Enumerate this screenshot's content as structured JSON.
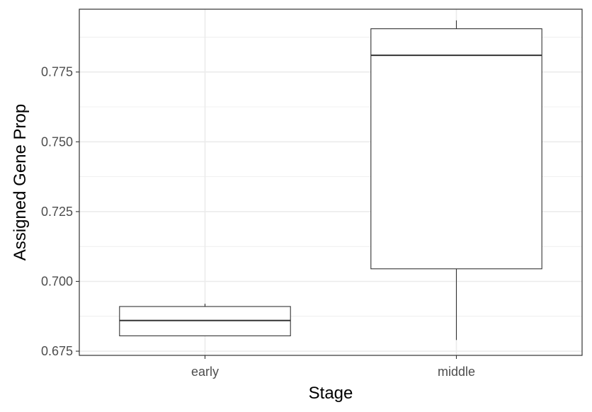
{
  "chart_data": {
    "type": "box",
    "xlabel": "Stage",
    "ylabel": "Assigned Gene Prop",
    "categories": [
      "early",
      "middle"
    ],
    "ylim": [
      0.6735,
      0.7975
    ],
    "yticks": [
      0.675,
      0.7,
      0.725,
      0.75,
      0.775
    ],
    "ytick_labels": [
      "0.675",
      "0.700",
      "0.725",
      "0.750",
      "0.775"
    ],
    "boxes": [
      {
        "category": "early",
        "whisker_low": 0.6805,
        "q1": 0.6805,
        "median": 0.686,
        "q3": 0.691,
        "whisker_high": 0.692
      },
      {
        "category": "middle",
        "whisker_low": 0.679,
        "q1": 0.7045,
        "median": 0.781,
        "q3": 0.7905,
        "whisker_high": 0.7935
      }
    ],
    "grid": true,
    "theme": "bw",
    "colors": {
      "grid": "#ebebeb",
      "border": "#333333",
      "box_stroke": "#333333",
      "box_fill": "#ffffff"
    }
  }
}
